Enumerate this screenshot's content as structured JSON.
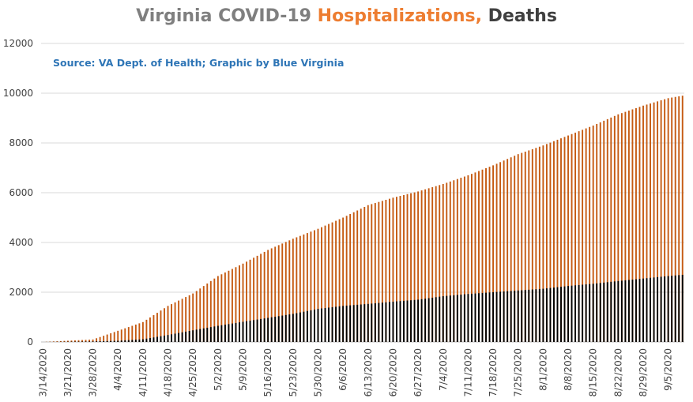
{
  "title": {
    "part1": "Virginia COVID-19 ",
    "part2": "Hospitalizations,",
    "part3": " Deaths"
  },
  "subtitle": "Source: VA Dept. of Health; Graphic by Blue Virginia",
  "colors": {
    "hospitalizations": "#c55a11",
    "deaths": "#000000",
    "grid": "#d9d9d9",
    "axis": "#bfbfbf"
  },
  "chart_data": {
    "type": "bar",
    "title": "Virginia COVID-19 Hospitalizations, Deaths",
    "subtitle": "Source: VA Dept. of Health; Graphic by Blue Virginia",
    "ylim": [
      0,
      12000
    ],
    "yticks": [
      0,
      2000,
      4000,
      6000,
      8000,
      10000,
      12000
    ],
    "start_date": "2020-03-14",
    "end_date": "2020-09-09",
    "xtick_labels": [
      "3/14/2020",
      "3/21/2020",
      "3/28/2020",
      "4/4/2020",
      "4/11/2020",
      "4/18/2020",
      "4/25/2020",
      "5/2/2020",
      "5/9/2020",
      "5/16/2020",
      "5/23/2020",
      "5/30/2020",
      "6/6/2020",
      "6/13/2020",
      "6/20/2020",
      "6/27/2020",
      "7/4/2020",
      "7/11/2020",
      "7/18/2020",
      "7/25/2020",
      "8/1/2020",
      "8/8/2020",
      "8/15/2020",
      "8/22/2020",
      "8/29/2020",
      "9/5/2020"
    ],
    "grid": true,
    "legend": "none",
    "series": [
      {
        "name": "Hospitalizations",
        "key_dates": [
          "3/14/2020",
          "3/28/2020",
          "4/4/2020",
          "4/11/2020",
          "4/18/2020",
          "4/25/2020",
          "5/2/2020",
          "5/9/2020",
          "5/16/2020",
          "5/23/2020",
          "5/30/2020",
          "6/6/2020",
          "6/13/2020",
          "6/20/2020",
          "6/27/2020",
          "7/4/2020",
          "7/11/2020",
          "7/18/2020",
          "7/25/2020",
          "8/1/2020",
          "8/8/2020",
          "8/15/2020",
          "8/22/2020",
          "8/29/2020",
          "9/5/2020",
          "9/9/2020"
        ],
        "key_values": [
          0,
          100,
          450,
          800,
          1450,
          1950,
          2650,
          3150,
          3700,
          4150,
          4550,
          5000,
          5500,
          5800,
          6050,
          6350,
          6700,
          7100,
          7550,
          7900,
          8300,
          8700,
          9150,
          9500,
          9800,
          9900
        ]
      },
      {
        "name": "Deaths",
        "key_dates": [
          "3/14/2020",
          "3/28/2020",
          "4/4/2020",
          "4/11/2020",
          "4/18/2020",
          "4/25/2020",
          "5/2/2020",
          "5/9/2020",
          "5/16/2020",
          "5/23/2020",
          "5/30/2020",
          "6/6/2020",
          "6/13/2020",
          "6/20/2020",
          "6/27/2020",
          "7/4/2020",
          "7/11/2020",
          "7/18/2020",
          "7/25/2020",
          "8/1/2020",
          "8/8/2020",
          "8/15/2020",
          "8/22/2020",
          "8/29/2020",
          "9/5/2020",
          "9/9/2020"
        ],
        "key_values": [
          0,
          20,
          50,
          110,
          280,
          470,
          650,
          810,
          970,
          1130,
          1330,
          1450,
          1530,
          1620,
          1700,
          1840,
          1930,
          2000,
          2070,
          2140,
          2250,
          2340,
          2450,
          2550,
          2650,
          2700
        ]
      }
    ]
  }
}
